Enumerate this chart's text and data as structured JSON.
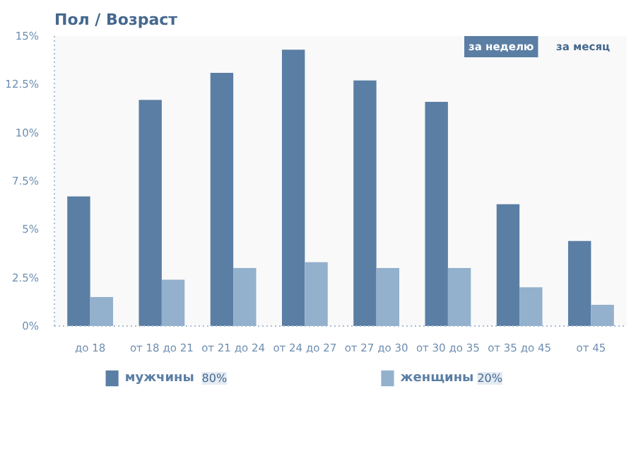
{
  "chart_data": {
    "type": "bar",
    "title": "Пол / Возраст",
    "categories": [
      "до 18",
      "от 18 до 21",
      "от 21 до 24",
      "от 24 до 27",
      "от 27 до 30",
      "от 30 до 35",
      "от 35 до 45",
      "от 45"
    ],
    "series": [
      {
        "name": "мужчины",
        "color": "#5b7ea4",
        "values": [
          6.7,
          11.7,
          13.1,
          14.3,
          12.7,
          11.6,
          6.3,
          4.4
        ]
      },
      {
        "name": "женщины",
        "color": "#93b0cd",
        "values": [
          1.5,
          2.4,
          3.0,
          3.3,
          3.0,
          3.0,
          2.0,
          1.1
        ]
      }
    ],
    "ylim": [
      0,
      15
    ],
    "yticks": [
      {
        "value": 0,
        "label": "0%"
      },
      {
        "value": 2.5,
        "label": "2.5%"
      },
      {
        "value": 5,
        "label": "5%"
      },
      {
        "value": 7.5,
        "label": "7.5%"
      },
      {
        "value": 10,
        "label": "10%"
      },
      {
        "value": 12.5,
        "label": "12.5%"
      },
      {
        "value": 15,
        "label": "15%"
      }
    ],
    "grid": false,
    "legend": "bottom",
    "annotations": [
      "за неделю",
      "за месяц",
      "80%",
      "20%"
    ]
  }
}
